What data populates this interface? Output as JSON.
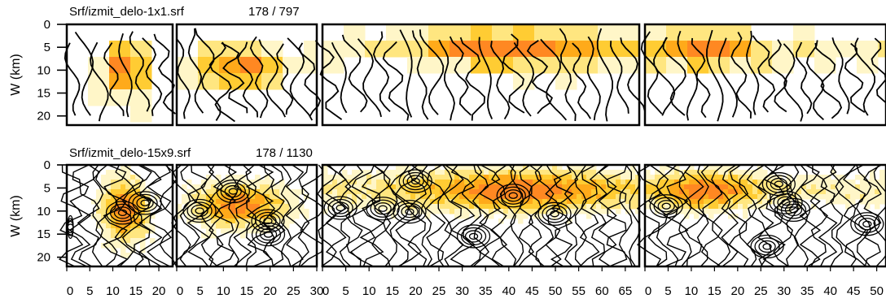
{
  "chart_data": [
    {
      "type": "heatmap",
      "title": "Srf/izmit_delo-1x1.srf",
      "counter": "178 / 797",
      "ylabel": "W (km)",
      "yticks": [
        "0",
        "5",
        "10",
        "15",
        "20"
      ],
      "ylim": [
        0,
        22
      ],
      "contours": "coarse",
      "subpanels": [
        {
          "xticks": [
            "0",
            "5",
            "10",
            "15",
            "20"
          ],
          "xlim": [
            0,
            23
          ]
        },
        {
          "xticks": [
            "0",
            "5",
            "10",
            "15",
            "20",
            "25",
            "30"
          ],
          "xlim": [
            0,
            30
          ]
        },
        {
          "xticks": [
            "0",
            "5",
            "10",
            "15",
            "20",
            "25",
            "30",
            "35",
            "40",
            "45",
            "50",
            "55",
            "60",
            "65"
          ],
          "xlim": [
            0,
            68
          ]
        },
        {
          "xticks": [
            "0",
            "5",
            "10",
            "15",
            "20",
            "25",
            "30",
            "35",
            "40",
            "45",
            "50"
          ],
          "xlim": [
            0,
            52
          ]
        }
      ]
    },
    {
      "type": "heatmap",
      "title": "Srf/izmit_delo-15x9.srf",
      "counter": "178 / 1130",
      "ylabel": "W (km)",
      "yticks": [
        "0",
        "5",
        "10",
        "15",
        "20"
      ],
      "ylim": [
        0,
        22
      ],
      "contours": "fine",
      "subpanels": [
        {
          "xticks": [
            "0",
            "5",
            "10",
            "15",
            "20"
          ],
          "xlim": [
            0,
            23
          ]
        },
        {
          "xticks": [
            "0",
            "5",
            "10",
            "15",
            "20",
            "25",
            "30"
          ],
          "xlim": [
            0,
            30
          ]
        },
        {
          "xticks": [
            "0",
            "5",
            "10",
            "15",
            "20",
            "25",
            "30",
            "35",
            "40",
            "45",
            "50",
            "55",
            "60",
            "65"
          ],
          "xlim": [
            0,
            68
          ]
        },
        {
          "xticks": [
            "0",
            "5",
            "10",
            "15",
            "20",
            "25",
            "30",
            "35",
            "40",
            "45",
            "50"
          ],
          "xlim": [
            0,
            52
          ]
        }
      ]
    }
  ],
  "colors": {
    "scale": [
      "#ffffff",
      "#fff6c8",
      "#ffe680",
      "#ffcc33",
      "#ffaa1a",
      "#ff8822"
    ],
    "contour": "#000000",
    "frame": "#000000"
  }
}
